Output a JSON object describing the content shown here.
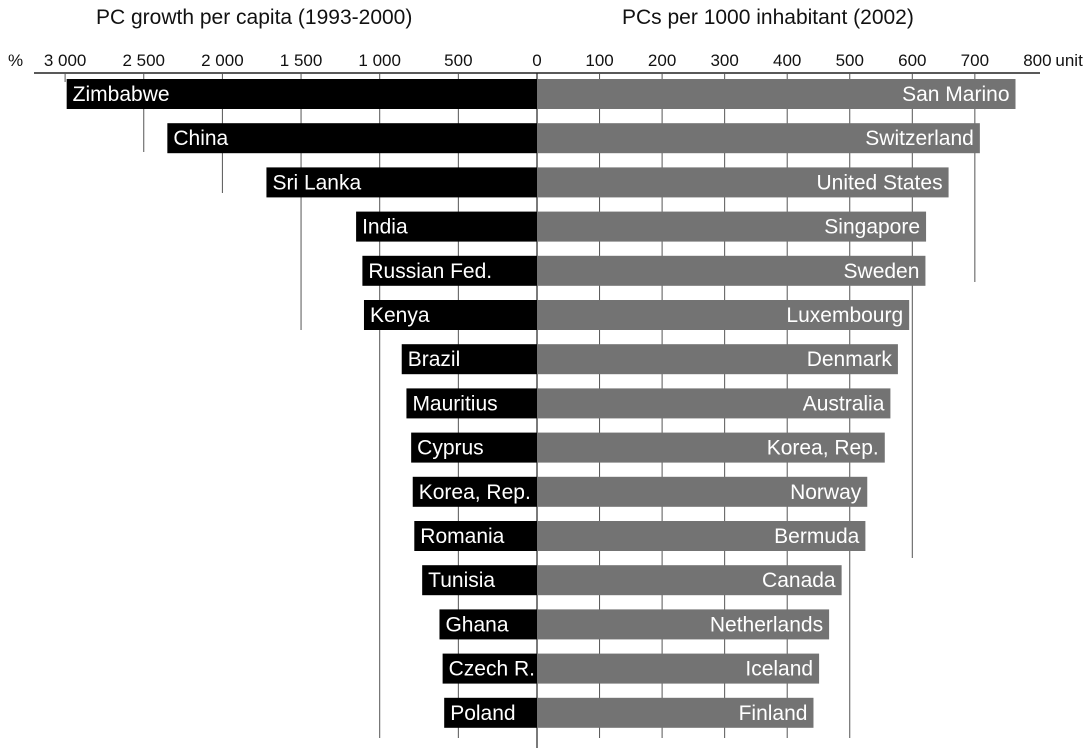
{
  "chart_data": [
    {
      "type": "bar",
      "orientation": "horizontal",
      "title": "PC growth per capita (1993-2000)",
      "axis_unit_label": "%",
      "xlim": [
        0,
        3000
      ],
      "ticks": [
        3000,
        2500,
        2000,
        1500,
        1000,
        500,
        0
      ],
      "tick_labels": [
        "3 000",
        "2 500",
        "2 000",
        "1 500",
        "1 000",
        "500",
        "0"
      ],
      "bar_color": "#000000",
      "categories": [
        "Zimbabwe",
        "China",
        "Sri Lanka",
        "India",
        "Russian Fed.",
        "Kenya",
        "Brazil",
        "Mauritius",
        "Cyprus",
        "Korea, Rep.",
        "Romania",
        "Tunisia",
        "Ghana",
        "Czech R.",
        "Poland"
      ],
      "values": [
        2990,
        2350,
        1720,
        1150,
        1110,
        1100,
        860,
        830,
        800,
        790,
        780,
        730,
        620,
        600,
        590
      ]
    },
    {
      "type": "bar",
      "orientation": "horizontal",
      "title": "PCs per 1000 inhabitant (2002)",
      "axis_unit_label": "unit",
      "xlim": [
        0,
        800
      ],
      "ticks": [
        0,
        100,
        200,
        300,
        400,
        500,
        600,
        700,
        800
      ],
      "tick_labels": [
        "0",
        "100",
        "200",
        "300",
        "400",
        "500",
        "600",
        "700",
        "800"
      ],
      "bar_color": "#737373",
      "categories": [
        "San Marino",
        "Switzerland",
        "United States",
        "Singapore",
        "Sweden",
        "Luxembourg",
        "Denmark",
        "Australia",
        "Korea, Rep.",
        "Norway",
        "Bermuda",
        "Canada",
        "Netherlands",
        "Iceland",
        "Finland"
      ],
      "values": [
        765,
        708,
        658,
        622,
        621,
        595,
        577,
        565,
        556,
        528,
        525,
        487,
        467,
        451,
        442
      ]
    }
  ]
}
